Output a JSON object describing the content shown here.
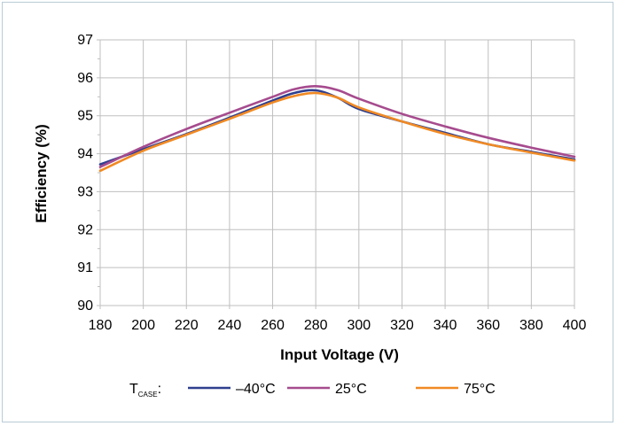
{
  "chart_data": {
    "type": "line",
    "title": "",
    "xlabel": "Input Voltage (V)",
    "ylabel": "Efficiency (%)",
    "xlim": [
      180,
      400
    ],
    "ylim": [
      90,
      97
    ],
    "x_ticks": [
      "180",
      "200",
      "220",
      "240",
      "260",
      "280",
      "300",
      "320",
      "340",
      "360",
      "380",
      "400"
    ],
    "y_ticks": [
      "90",
      "91",
      "92",
      "93",
      "94",
      "95",
      "96",
      "97"
    ],
    "grid": true,
    "legend_position": "bottom",
    "legend_prefix": {
      "main": "T",
      "sub": "CASE",
      "suffix": ":"
    },
    "series": [
      {
        "name": "–40°C",
        "color": "#2e3f8f",
        "x": [
          180,
          200,
          220,
          240,
          260,
          270,
          280,
          290,
          300,
          320,
          340,
          360,
          380,
          400
        ],
        "y": [
          93.72,
          94.12,
          94.52,
          94.95,
          95.4,
          95.6,
          95.67,
          95.48,
          95.18,
          94.85,
          94.55,
          94.25,
          94.05,
          93.85
        ]
      },
      {
        "name": "25°C",
        "color": "#a64b8e",
        "x": [
          180,
          200,
          220,
          240,
          260,
          270,
          280,
          290,
          300,
          320,
          340,
          360,
          380,
          400
        ],
        "y": [
          93.65,
          94.18,
          94.65,
          95.08,
          95.5,
          95.7,
          95.78,
          95.68,
          95.45,
          95.05,
          94.72,
          94.42,
          94.16,
          93.92
        ]
      },
      {
        "name": "75°C",
        "color": "#f08a24",
        "x": [
          180,
          200,
          220,
          240,
          260,
          270,
          280,
          290,
          300,
          320,
          340,
          360,
          380,
          400
        ],
        "y": [
          93.55,
          94.08,
          94.5,
          94.92,
          95.35,
          95.52,
          95.6,
          95.48,
          95.22,
          94.85,
          94.52,
          94.25,
          94.03,
          93.82
        ]
      }
    ]
  }
}
